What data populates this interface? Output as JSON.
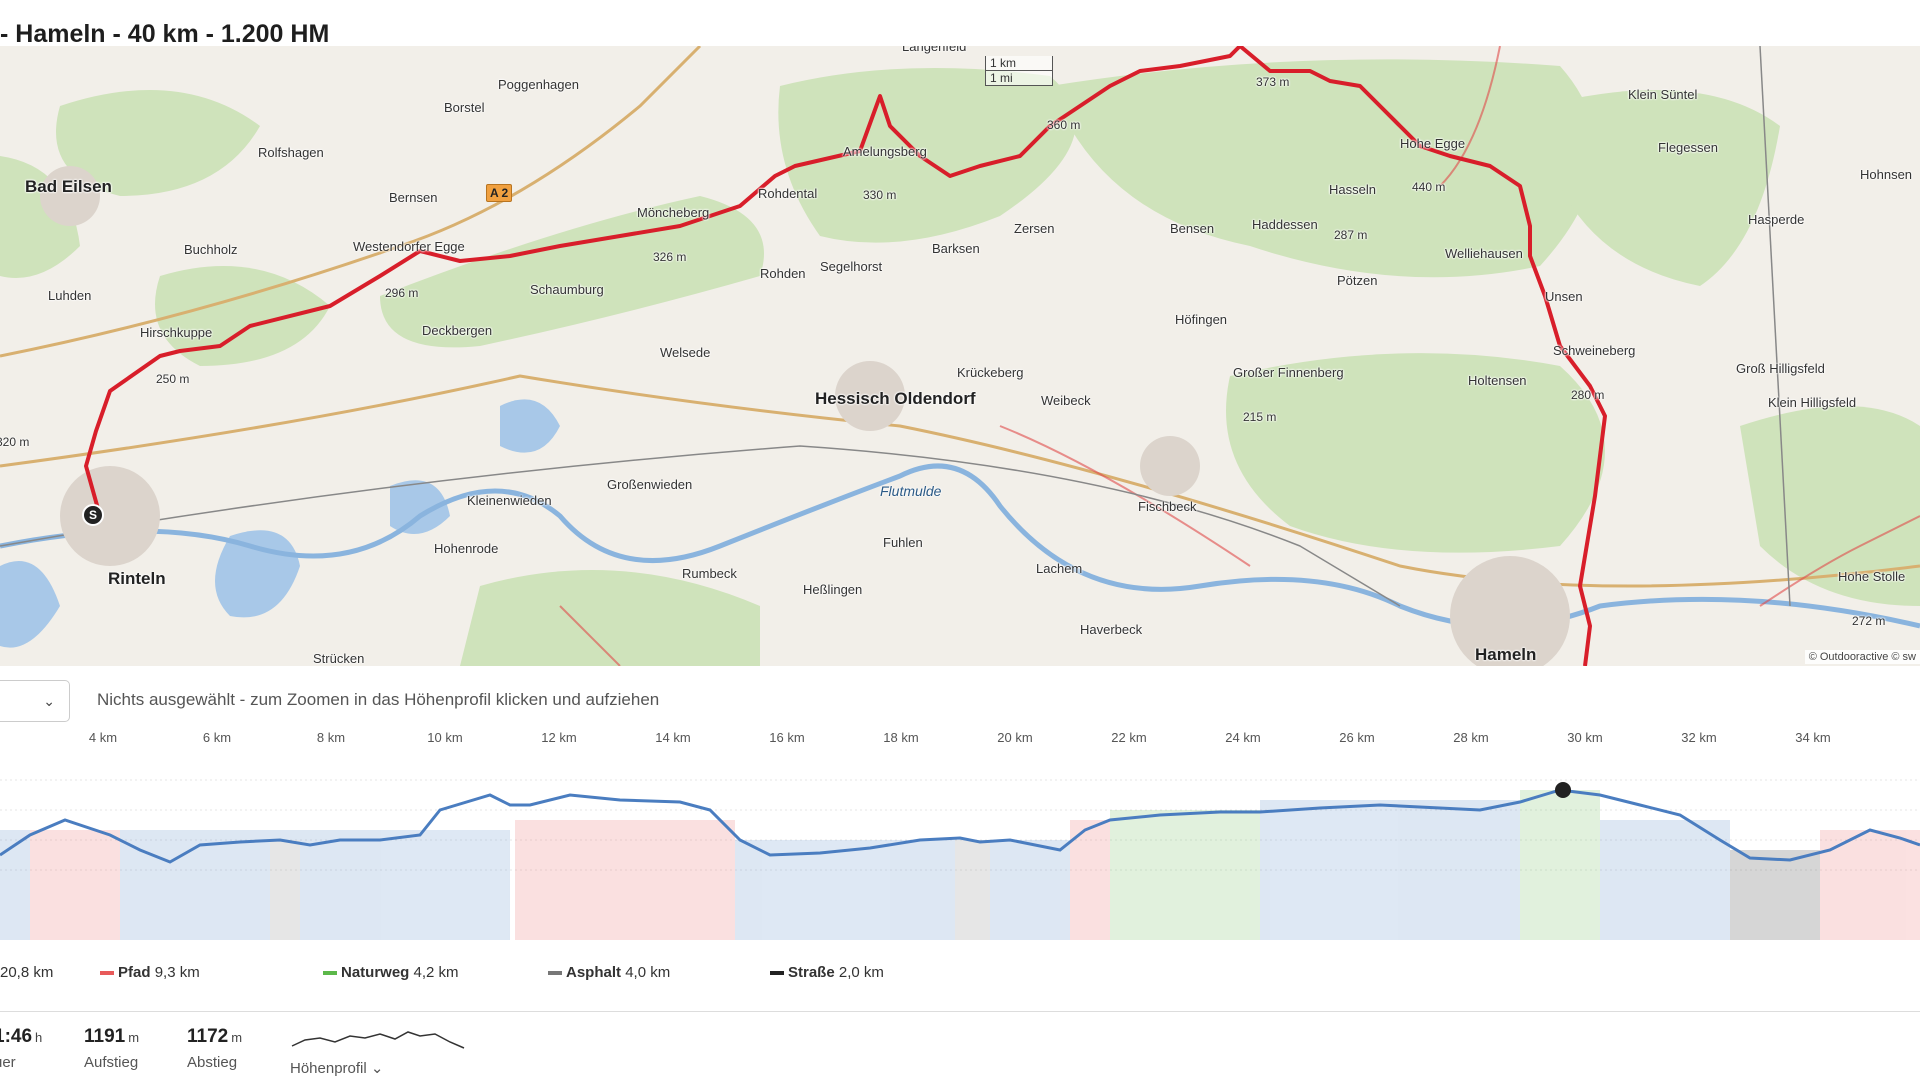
{
  "title": "- Hameln - 40 km - 1.200 HM",
  "map": {
    "places": [
      {
        "name": "Bad Eilsen",
        "type": "town"
      },
      {
        "name": "Rinteln",
        "type": "town"
      },
      {
        "name": "Hessisch Oldendorf",
        "type": "town"
      },
      {
        "name": "Hameln",
        "type": "town"
      },
      {
        "name": "Poggenhagen",
        "type": "village"
      },
      {
        "name": "Borstel",
        "type": "village"
      },
      {
        "name": "Rolfshagen",
        "type": "village"
      },
      {
        "name": "Bernsen",
        "type": "village"
      },
      {
        "name": "Buchholz",
        "type": "village"
      },
      {
        "name": "Luhden",
        "type": "village"
      },
      {
        "name": "Hirschkuppe",
        "type": "village"
      },
      {
        "name": "Westendorfer Egge",
        "type": "village"
      },
      {
        "name": "Schaumburg",
        "type": "village"
      },
      {
        "name": "Deckbergen",
        "type": "village"
      },
      {
        "name": "Möncheberg",
        "type": "village"
      },
      {
        "name": "Rohdental",
        "type": "village"
      },
      {
        "name": "Rohden",
        "type": "village"
      },
      {
        "name": "Segelhorst",
        "type": "village"
      },
      {
        "name": "Amelungsberg",
        "type": "village"
      },
      {
        "name": "Barksen",
        "type": "village"
      },
      {
        "name": "Zersen",
        "type": "village"
      },
      {
        "name": "Bensen",
        "type": "village"
      },
      {
        "name": "Haddessen",
        "type": "village"
      },
      {
        "name": "Hasseln",
        "type": "village"
      },
      {
        "name": "Hohe Egge",
        "type": "village"
      },
      {
        "name": "Welliehausen",
        "type": "village"
      },
      {
        "name": "Pötzen",
        "type": "village"
      },
      {
        "name": "Höfingen",
        "type": "village"
      },
      {
        "name": "Unsen",
        "type": "village"
      },
      {
        "name": "Schweineberg",
        "type": "village"
      },
      {
        "name": "Holtensen",
        "type": "village"
      },
      {
        "name": "Großer Finnenberg",
        "type": "village"
      },
      {
        "name": "Welsede",
        "type": "village"
      },
      {
        "name": "Krückeberg",
        "type": "village"
      },
      {
        "name": "Weibeck",
        "type": "village"
      },
      {
        "name": "Kleinenwieden",
        "type": "village"
      },
      {
        "name": "Großenwieden",
        "type": "village"
      },
      {
        "name": "Hohenrode",
        "type": "village"
      },
      {
        "name": "Rumbeck",
        "type": "village"
      },
      {
        "name": "Heßlingen",
        "type": "village"
      },
      {
        "name": "Fuhlen",
        "type": "village"
      },
      {
        "name": "Lachem",
        "type": "village"
      },
      {
        "name": "Fischbeck",
        "type": "village"
      },
      {
        "name": "Haverbeck",
        "type": "village"
      },
      {
        "name": "Strücken",
        "type": "village"
      },
      {
        "name": "Langenfeld",
        "type": "village"
      },
      {
        "name": "Klein Süntel",
        "type": "village"
      },
      {
        "name": "Flegessen",
        "type": "village"
      },
      {
        "name": "Hasperde",
        "type": "village"
      },
      {
        "name": "Groß Hilligsfeld",
        "type": "village"
      },
      {
        "name": "Klein Hilligsfeld",
        "type": "village"
      },
      {
        "name": "Hohe Stolle",
        "type": "village"
      },
      {
        "name": "Hohnsen",
        "type": "village"
      },
      {
        "name": "Flutmulde",
        "type": "water"
      }
    ],
    "peaks": [
      "250 m",
      "296 m",
      "326 m",
      "330 m",
      "360 m",
      "373 m",
      "440 m",
      "287 m",
      "280 m",
      "215 m",
      "272 m",
      "320 m"
    ],
    "highway": "A 2",
    "scale": {
      "km": "1 km",
      "mi": "1 mi"
    },
    "attribution": "© Outdooractive © sw",
    "start_marker": "S"
  },
  "profile": {
    "select_text": "Nichts ausgewählt - zum Zoomen in das Höhenprofil klicken und aufziehen",
    "x_ticks": [
      "4 km",
      "6 km",
      "8 km",
      "10 km",
      "12 km",
      "14 km",
      "16 km",
      "18 km",
      "20 km",
      "22 km",
      "24 km",
      "26 km",
      "28 km",
      "30 km",
      "32 km",
      "34 km"
    ],
    "colors": {
      "pfad": "#e85a5a",
      "naturweg": "#5cb84a",
      "asphalt": "#666666",
      "strasse": "#222222",
      "weg": "#4a7dc0"
    }
  },
  "legend": [
    {
      "name": "",
      "value": "20,8 km",
      "color": "#4a7dc0"
    },
    {
      "name": "Pfad",
      "value": "9,3 km",
      "color": "#e85a5a"
    },
    {
      "name": "Naturweg",
      "value": "4,2 km",
      "color": "#5cb84a"
    },
    {
      "name": "Asphalt",
      "value": "4,0 km",
      "color": "#777777"
    },
    {
      "name": "Straße",
      "value": "2,0 km",
      "color": "#222222"
    }
  ],
  "stats": [
    {
      "value": "1:46",
      "unit": "h",
      "label": "uer"
    },
    {
      "value": "1191",
      "unit": "m",
      "label": "Aufstieg"
    },
    {
      "value": "1172",
      "unit": "m",
      "label": "Abstieg"
    }
  ],
  "profile_link": "Höhenprofil"
}
